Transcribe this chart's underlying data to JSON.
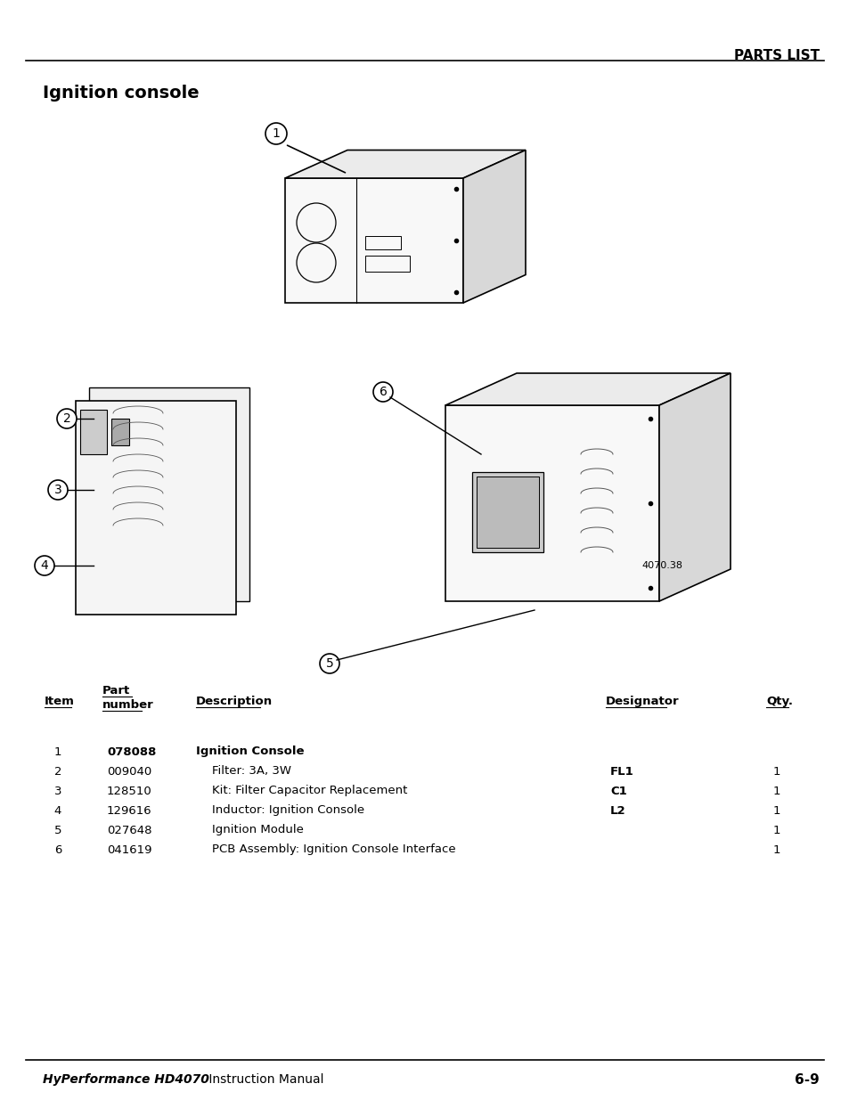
{
  "page_header_text": "PARTS LIST",
  "section_title": "Ignition console",
  "figure_note": "4070.38",
  "footer_left_italic": "HyPerformance HD4070",
  "footer_left_normal": " Instruction Manual",
  "footer_right": "6-9",
  "table_headers": [
    "Item",
    "Part\nnumber",
    "Description",
    "Designator",
    "Qty."
  ],
  "table_rows": [
    [
      "1",
      "078088",
      "Ignition Console",
      "",
      ""
    ],
    [
      "2",
      "009040",
      "Filter: 3A, 3W",
      "FL1",
      "1"
    ],
    [
      "3",
      "128510",
      "Kit: Filter Capacitor Replacement",
      "C1",
      "1"
    ],
    [
      "4",
      "129616",
      "Inductor: Ignition Console",
      "L2",
      "1"
    ],
    [
      "5",
      "027648",
      "Ignition Module",
      "",
      "1"
    ],
    [
      "6",
      "041619",
      "PCB Assembly: Ignition Console Interface",
      "",
      "1"
    ]
  ],
  "row1_bold_desc": true,
  "row1_bold_part": true,
  "bg_color": "#ffffff",
  "text_color": "#000000"
}
